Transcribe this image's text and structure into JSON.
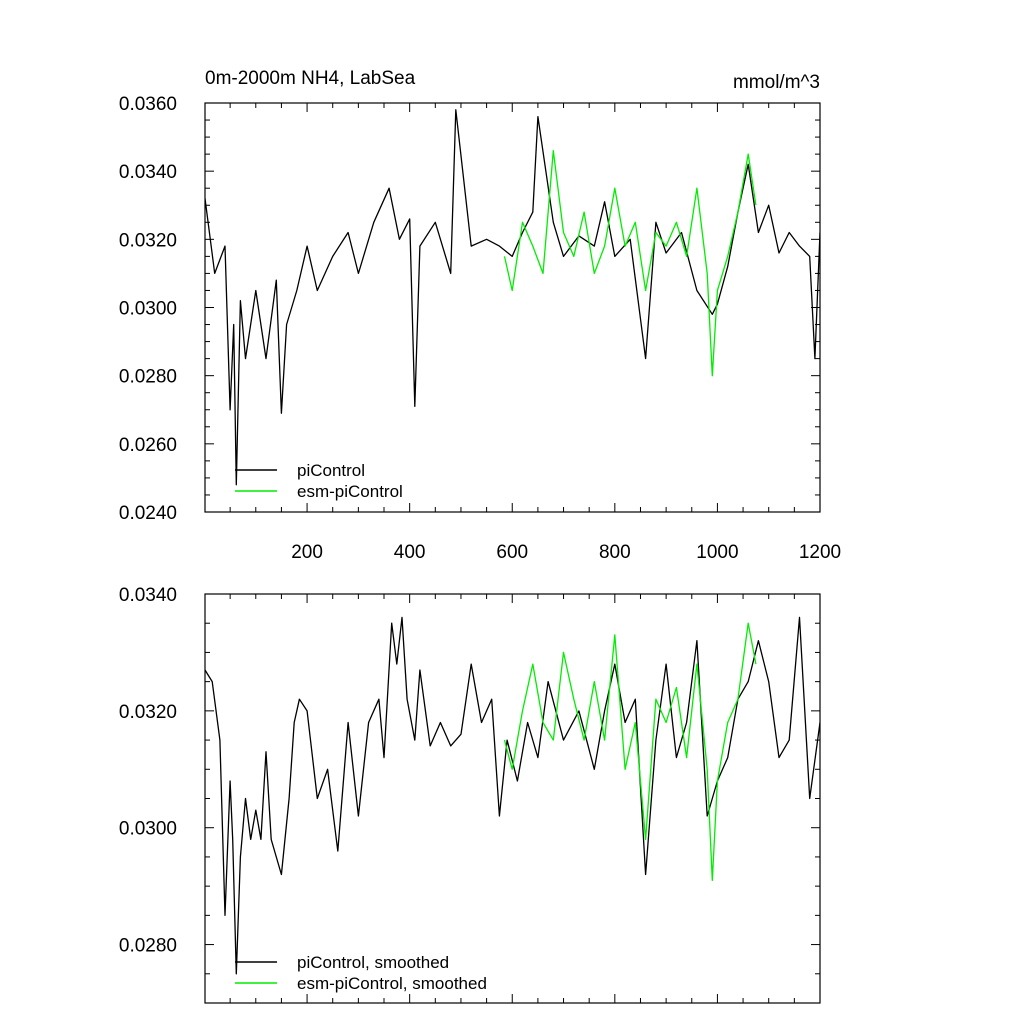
{
  "chart_data": [
    {
      "type": "line",
      "title_left": "0m-2000m NH4, LabSea",
      "title_right": "mmol/m^3",
      "xlim": [
        1,
        1200
      ],
      "ylim": [
        0.024,
        0.036
      ],
      "x_ticks": [
        200,
        400,
        600,
        800,
        1000,
        1200
      ],
      "y_ticks": [
        "0.0240",
        "0.0260",
        "0.0280",
        "0.0300",
        "0.0320",
        "0.0340",
        "0.0360"
      ],
      "grid": false,
      "legend_position": "bottom-left",
      "series": [
        {
          "name": "piControl",
          "color": "#000000",
          "x": [
            1,
            20,
            40,
            50,
            57,
            62,
            70,
            80,
            100,
            120,
            140,
            150,
            160,
            180,
            200,
            220,
            250,
            280,
            300,
            330,
            360,
            380,
            400,
            410,
            420,
            450,
            480,
            490,
            520,
            550,
            575,
            600,
            620,
            640,
            650,
            680,
            700,
            730,
            760,
            780,
            800,
            830,
            860,
            880,
            900,
            930,
            960,
            990,
            1000,
            1020,
            1040,
            1060,
            1080,
            1100,
            1120,
            1140,
            1160,
            1180,
            1190,
            1200
          ],
          "values": [
            0.0332,
            0.031,
            0.0318,
            0.027,
            0.0295,
            0.0248,
            0.0302,
            0.0285,
            0.0305,
            0.0285,
            0.0308,
            0.0269,
            0.0295,
            0.0305,
            0.0318,
            0.0305,
            0.0315,
            0.0322,
            0.031,
            0.0325,
            0.0335,
            0.032,
            0.0326,
            0.0271,
            0.0318,
            0.0325,
            0.031,
            0.0358,
            0.0318,
            0.032,
            0.0318,
            0.0315,
            0.0322,
            0.0328,
            0.0356,
            0.0325,
            0.0315,
            0.0321,
            0.0318,
            0.0331,
            0.0315,
            0.032,
            0.0285,
            0.0325,
            0.0316,
            0.0322,
            0.0305,
            0.0298,
            0.0301,
            0.0312,
            0.0328,
            0.0342,
            0.0322,
            0.033,
            0.0316,
            0.0322,
            0.0318,
            0.0315,
            0.0285,
            0.0322
          ]
        },
        {
          "name": "esm-piControl",
          "color": "#00ee00",
          "x": [
            585,
            600,
            620,
            640,
            660,
            680,
            700,
            720,
            740,
            760,
            780,
            800,
            820,
            840,
            860,
            880,
            900,
            920,
            940,
            960,
            980,
            990,
            1000,
            1020,
            1040,
            1060,
            1075
          ],
          "values": [
            0.0315,
            0.0305,
            0.0325,
            0.0318,
            0.031,
            0.0346,
            0.0322,
            0.0315,
            0.0328,
            0.031,
            0.0318,
            0.0335,
            0.0318,
            0.0325,
            0.0305,
            0.0322,
            0.0318,
            0.0325,
            0.0315,
            0.0335,
            0.031,
            0.028,
            0.0305,
            0.0315,
            0.0328,
            0.0345,
            0.033
          ]
        }
      ]
    },
    {
      "type": "line",
      "xlim": [
        1,
        1200
      ],
      "ylim": [
        0.027,
        0.034
      ],
      "x_ticks": [
        200,
        400,
        600,
        800,
        1000,
        1200
      ],
      "y_ticks": [
        "0.0280",
        "0.0300",
        "0.0320",
        "0.0340"
      ],
      "grid": false,
      "legend_position": "bottom-left",
      "series": [
        {
          "name": "piControl, smoothed",
          "color": "#000000",
          "x": [
            1,
            15,
            30,
            40,
            50,
            55,
            62,
            70,
            80,
            90,
            100,
            110,
            120,
            130,
            150,
            165,
            175,
            185,
            200,
            220,
            240,
            260,
            280,
            300,
            320,
            340,
            350,
            365,
            375,
            385,
            395,
            410,
            420,
            440,
            460,
            480,
            500,
            520,
            540,
            560,
            575,
            590,
            610,
            630,
            650,
            670,
            700,
            730,
            760,
            780,
            800,
            820,
            840,
            860,
            880,
            900,
            920,
            940,
            960,
            980,
            1000,
            1020,
            1040,
            1060,
            1080,
            1100,
            1120,
            1140,
            1160,
            1180,
            1200
          ],
          "values": [
            0.0327,
            0.0325,
            0.0315,
            0.0285,
            0.0308,
            0.0298,
            0.0275,
            0.0295,
            0.0305,
            0.0298,
            0.0303,
            0.0298,
            0.0313,
            0.0298,
            0.0292,
            0.0305,
            0.0318,
            0.0322,
            0.032,
            0.0305,
            0.031,
            0.0296,
            0.0318,
            0.0302,
            0.0318,
            0.0322,
            0.0312,
            0.0335,
            0.0328,
            0.0336,
            0.0322,
            0.0315,
            0.0327,
            0.0314,
            0.0318,
            0.0314,
            0.0316,
            0.0328,
            0.0318,
            0.0322,
            0.0302,
            0.0315,
            0.0308,
            0.0318,
            0.0312,
            0.0325,
            0.0315,
            0.032,
            0.031,
            0.032,
            0.0328,
            0.0318,
            0.0322,
            0.0292,
            0.0315,
            0.0328,
            0.0312,
            0.0318,
            0.0332,
            0.0302,
            0.0308,
            0.0312,
            0.0322,
            0.0325,
            0.0332,
            0.0325,
            0.0312,
            0.0315,
            0.0336,
            0.0305,
            0.0318
          ]
        },
        {
          "name": "esm-piControl, smoothed",
          "color": "#00ee00",
          "x": [
            585,
            600,
            620,
            640,
            660,
            680,
            700,
            720,
            740,
            760,
            780,
            800,
            820,
            840,
            860,
            880,
            900,
            920,
            940,
            960,
            980,
            990,
            1000,
            1020,
            1040,
            1060,
            1075
          ],
          "values": [
            0.0315,
            0.031,
            0.032,
            0.0328,
            0.0318,
            0.0315,
            0.033,
            0.0322,
            0.0315,
            0.0325,
            0.0315,
            0.0333,
            0.031,
            0.0318,
            0.0298,
            0.0322,
            0.0318,
            0.0324,
            0.0312,
            0.0328,
            0.031,
            0.0291,
            0.0308,
            0.0318,
            0.0322,
            0.0335,
            0.0328
          ]
        }
      ]
    }
  ]
}
